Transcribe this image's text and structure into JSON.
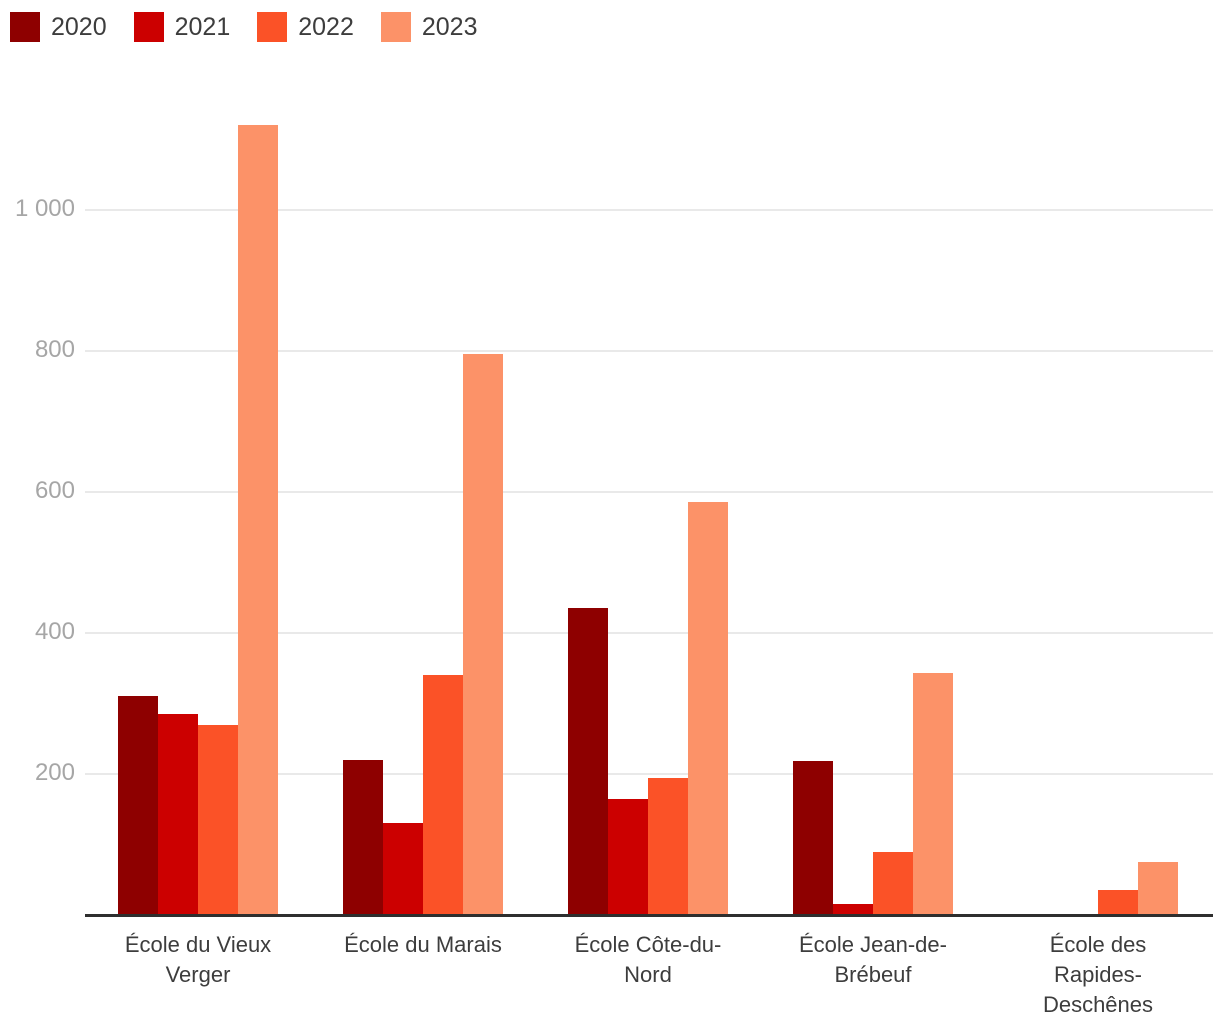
{
  "chart_data": {
    "type": "bar",
    "title": "",
    "xlabel": "",
    "ylabel": "",
    "categories": [
      "École du Vieux Verger",
      "École du Marais",
      "École Côte-du-Nord",
      "École Jean-de-Brébeuf",
      "École des Rapides-Deschênes"
    ],
    "category_tick_lines": [
      [
        "École du Vieux",
        "Verger"
      ],
      [
        "École du Marais"
      ],
      [
        "École Côte-du-",
        "Nord"
      ],
      [
        "École Jean-de-",
        "Brébeuf"
      ],
      [
        "École des",
        "Rapides-",
        "Deschênes"
      ]
    ],
    "series": [
      {
        "name": "2020",
        "color": "#8e0000",
        "values": [
          310,
          220,
          435,
          218,
          0
        ]
      },
      {
        "name": "2021",
        "color": "#cc0000",
        "values": [
          285,
          130,
          165,
          15,
          0
        ]
      },
      {
        "name": "2022",
        "color": "#fb5227",
        "values": [
          270,
          340,
          195,
          90,
          35
        ]
      },
      {
        "name": "2023",
        "color": "#fc9268",
        "values": [
          1120,
          795,
          585,
          343,
          75
        ]
      }
    ],
    "yticks": [
      {
        "value": 200,
        "label": "200"
      },
      {
        "value": 400,
        "label": "400"
      },
      {
        "value": 600,
        "label": "600"
      },
      {
        "value": 800,
        "label": "800"
      },
      {
        "value": 1000,
        "label": "1 000"
      }
    ],
    "ylim": [
      0,
      1225
    ],
    "grid": true,
    "legend_position": "top-left",
    "axis_colors": {
      "gridline": "#e9e9e9",
      "baseline": "#2e2e2e",
      "ytick_text": "#a6a6a6",
      "xtick_text": "#3d3d3d",
      "legend_text": "#3d3d3d"
    }
  }
}
